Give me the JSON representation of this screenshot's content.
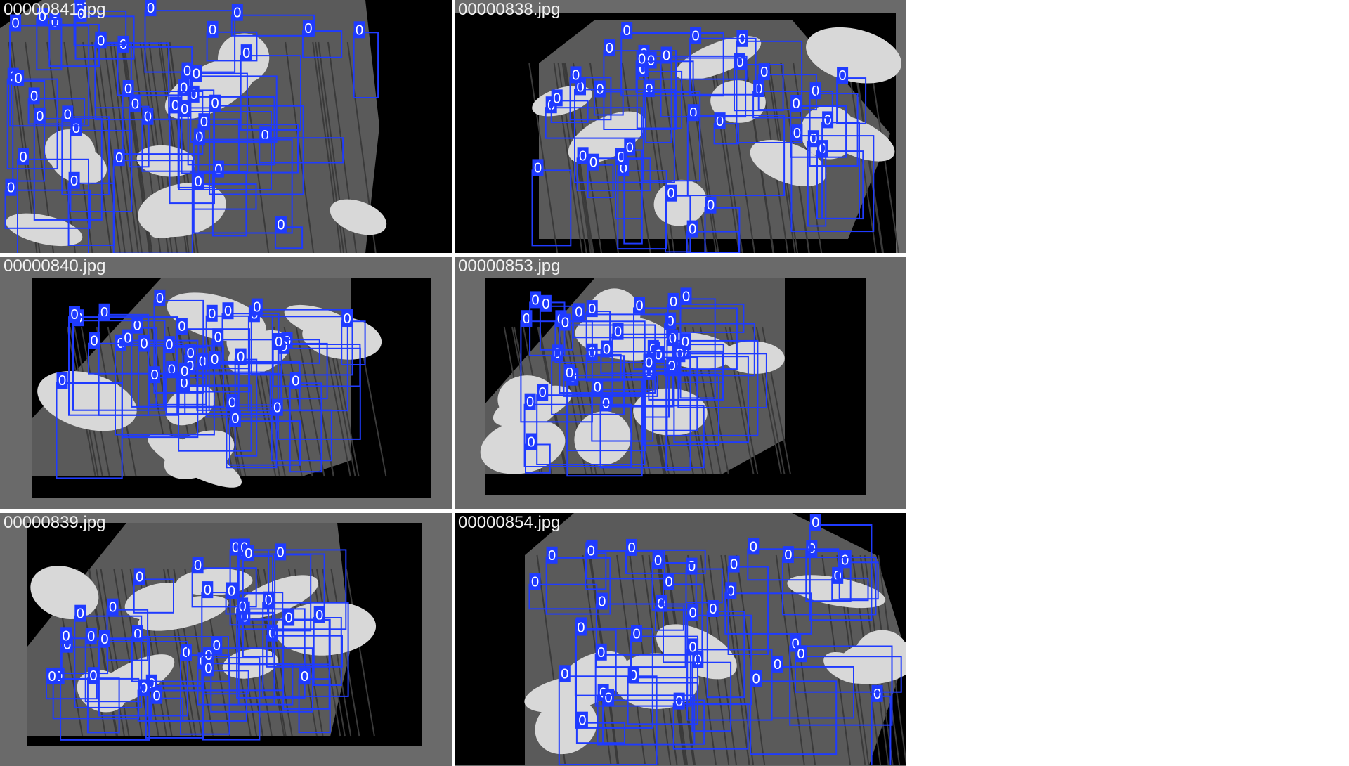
{
  "mosaic": {
    "box_color": "#1f3bff",
    "label_bg": "#1f3bff",
    "label_fg": "#ffffff",
    "class_label": "0",
    "tiles": [
      {
        "filename": "00000841.jpg",
        "detection_count": 40
      },
      {
        "filename": "00000838.jpg",
        "detection_count": 36
      },
      {
        "filename": "00000840.jpg",
        "detection_count": 34
      },
      {
        "filename": "00000853.jpg",
        "detection_count": 33
      },
      {
        "filename": "00000839.jpg",
        "detection_count": 35
      },
      {
        "filename": "00000854.jpg",
        "detection_count": 37
      }
    ]
  }
}
